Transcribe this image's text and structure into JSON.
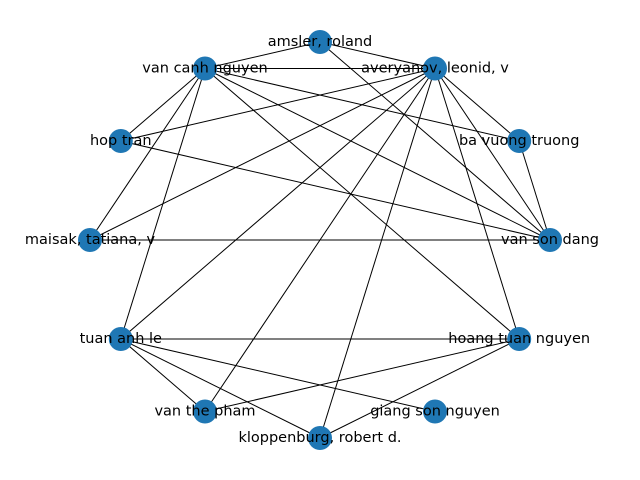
{
  "graph": {
    "node_color": "#1f77b4",
    "edge_color": "#000000",
    "nodes": [
      {
        "id": "amsler",
        "label": "amsler, roland"
      },
      {
        "id": "averyanov",
        "label": "averyanov, leonid, v"
      },
      {
        "id": "ba_vuong_truong",
        "label": "ba vuong truong"
      },
      {
        "id": "van_son_dang",
        "label": "van son dang"
      },
      {
        "id": "hoang_tuan_nguyen",
        "label": "hoang tuan nguyen"
      },
      {
        "id": "giang_son_nguyen",
        "label": "giang son nguyen"
      },
      {
        "id": "kloppenburg",
        "label": "kloppenburg, robert d."
      },
      {
        "id": "van_the_pham",
        "label": "van the pham"
      },
      {
        "id": "tuan_anh_le",
        "label": "tuan anh le"
      },
      {
        "id": "maisak",
        "label": "maisak, tatiana, v"
      },
      {
        "id": "hop_tran",
        "label": "hop tran"
      },
      {
        "id": "van_canh_nguyen",
        "label": "van canh nguyen"
      }
    ],
    "edges": [
      [
        "amsler",
        "van_canh_nguyen"
      ],
      [
        "amsler",
        "averyanov"
      ],
      [
        "amsler",
        "van_son_dang"
      ],
      [
        "van_canh_nguyen",
        "averyanov"
      ],
      [
        "van_canh_nguyen",
        "ba_vuong_truong"
      ],
      [
        "van_canh_nguyen",
        "van_son_dang"
      ],
      [
        "van_canh_nguyen",
        "hoang_tuan_nguyen"
      ],
      [
        "van_canh_nguyen",
        "hop_tran"
      ],
      [
        "van_canh_nguyen",
        "maisak"
      ],
      [
        "van_canh_nguyen",
        "tuan_anh_le"
      ],
      [
        "averyanov",
        "hop_tran"
      ],
      [
        "averyanov",
        "ba_vuong_truong"
      ],
      [
        "averyanov",
        "van_son_dang"
      ],
      [
        "averyanov",
        "hoang_tuan_nguyen"
      ],
      [
        "averyanov",
        "maisak"
      ],
      [
        "averyanov",
        "tuan_anh_le"
      ],
      [
        "averyanov",
        "van_the_pham"
      ],
      [
        "averyanov",
        "kloppenburg"
      ],
      [
        "ba_vuong_truong",
        "van_son_dang"
      ],
      [
        "hop_tran",
        "van_son_dang"
      ],
      [
        "maisak",
        "van_son_dang"
      ],
      [
        "tuan_anh_le",
        "hoang_tuan_nguyen"
      ],
      [
        "tuan_anh_le",
        "giang_son_nguyen"
      ],
      [
        "tuan_anh_le",
        "kloppenburg"
      ],
      [
        "tuan_anh_le",
        "van_the_pham"
      ],
      [
        "hoang_tuan_nguyen",
        "van_the_pham"
      ],
      [
        "hoang_tuan_nguyen",
        "kloppenburg"
      ]
    ]
  }
}
